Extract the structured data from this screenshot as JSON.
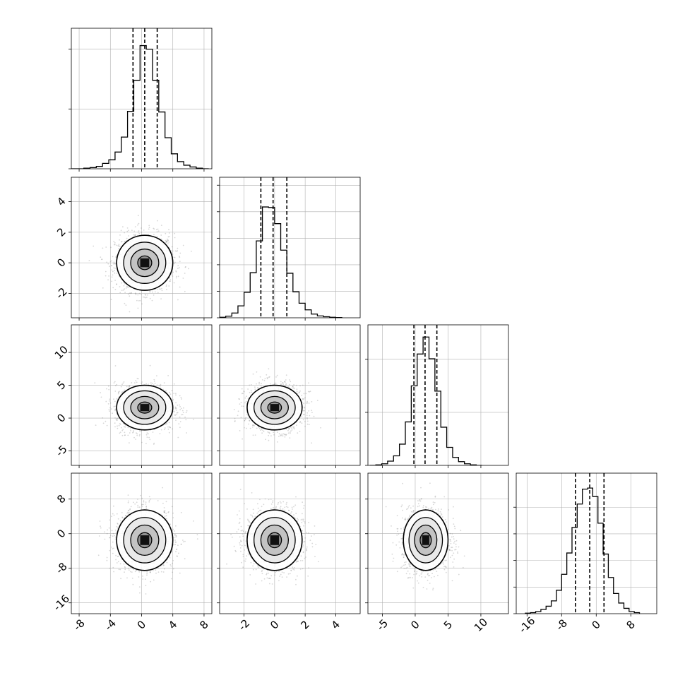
{
  "chart_data": {
    "type": "corner",
    "grid": true,
    "colors": {
      "line": "#000000",
      "grid": "#b0b0b0",
      "scatter": "#8c8c8c"
    },
    "params": [
      {
        "range": [
          -9,
          9
        ],
        "ticks": [
          -8,
          -4,
          0,
          4,
          8
        ],
        "mean": 0.4,
        "sd": 1.8,
        "quantiles": [
          -1.1,
          0.4,
          2.0
        ]
      },
      {
        "range": [
          -3.6,
          5.6
        ],
        "ticks": [
          -2,
          0,
          2,
          4
        ],
        "mean": 0.0,
        "sd": 0.9,
        "quantiles": [
          -0.9,
          -0.1,
          0.8
        ]
      },
      {
        "range": [
          -7.2,
          14.2
        ],
        "ticks": [
          -5,
          0,
          5,
          10
        ],
        "mean": 1.6,
        "sd": 1.7,
        "quantiles": [
          -0.2,
          1.5,
          3.3
        ]
      },
      {
        "range": [
          -18.5,
          14
        ],
        "ticks": [
          -16,
          -8,
          0,
          8
        ],
        "mean": -1.5,
        "sd": 3.5,
        "quantiles": [
          -4.8,
          -1.5,
          1.8
        ]
      }
    ],
    "histograms": [
      {
        "name": "p0",
        "ylim": [
          0,
          0.235
        ],
        "yticks": [
          0.1,
          0.2
        ],
        "bins": [
          -9.0,
          -8.2,
          -7.4,
          -6.6,
          -5.8,
          -5.0,
          -4.2,
          -3.4,
          -2.6,
          -1.8,
          -1.0,
          -0.2,
          0.6,
          1.4,
          2.2,
          3.0,
          3.8,
          4.6,
          5.4,
          6.2,
          7.0,
          7.8,
          8.6
        ],
        "values": [
          0,
          0,
          0.001,
          0.002,
          0.004,
          0.009,
          0.015,
          0.028,
          0.053,
          0.096,
          0.148,
          0.206,
          0.2,
          0.148,
          0.095,
          0.052,
          0.025,
          0.012,
          0.006,
          0.003,
          0.001,
          0
        ]
      },
      {
        "name": "p1",
        "ylim": [
          0,
          0.53
        ],
        "yticks": [
          0.1,
          0.2,
          0.3,
          0.4,
          0.5
        ],
        "bins": [
          -3.6,
          -3.2,
          -2.8,
          -2.4,
          -2.0,
          -1.6,
          -1.2,
          -0.8,
          -0.4,
          0.0,
          0.4,
          0.8,
          1.2,
          1.6,
          2.0,
          2.4,
          2.8,
          3.2,
          3.6,
          4.0,
          4.4
        ],
        "values": [
          0.002,
          0.006,
          0.018,
          0.045,
          0.096,
          0.17,
          0.29,
          0.418,
          0.416,
          0.355,
          0.255,
          0.168,
          0.098,
          0.055,
          0.03,
          0.014,
          0.007,
          0.004,
          0.002,
          0.001
        ]
      },
      {
        "name": "p2",
        "ylim": [
          0,
          0.265
        ],
        "yticks": [
          0.1,
          0.2
        ],
        "bins": [
          -6.9,
          -6.0,
          -5.1,
          -4.2,
          -3.3,
          -2.4,
          -1.5,
          -0.6,
          0.3,
          1.2,
          2.1,
          3.0,
          3.9,
          4.8,
          5.7,
          6.6,
          7.5,
          8.4,
          9.3,
          10.2
        ],
        "values": [
          0,
          0.001,
          0.003,
          0.008,
          0.018,
          0.04,
          0.082,
          0.15,
          0.21,
          0.242,
          0.201,
          0.14,
          0.072,
          0.034,
          0.015,
          0.007,
          0.003,
          0.001,
          0
        ]
      },
      {
        "name": "p3",
        "ylim": [
          0,
          0.132
        ],
        "yticks": [
          0.025,
          0.05,
          0.075,
          0.1
        ],
        "bins": [
          -16.4,
          -15.2,
          -14.0,
          -12.8,
          -11.6,
          -10.4,
          -9.2,
          -8.0,
          -6.8,
          -5.6,
          -4.4,
          -3.2,
          -2.0,
          -0.8,
          0.4,
          1.6,
          2.8,
          4.0,
          5.2,
          6.4,
          7.6,
          8.8,
          10.0
        ],
        "values": [
          0.0005,
          0.001,
          0.002,
          0.004,
          0.007,
          0.012,
          0.022,
          0.037,
          0.057,
          0.081,
          0.103,
          0.117,
          0.118,
          0.11,
          0.085,
          0.056,
          0.034,
          0.019,
          0.01,
          0.005,
          0.002,
          0.001
        ]
      }
    ]
  }
}
